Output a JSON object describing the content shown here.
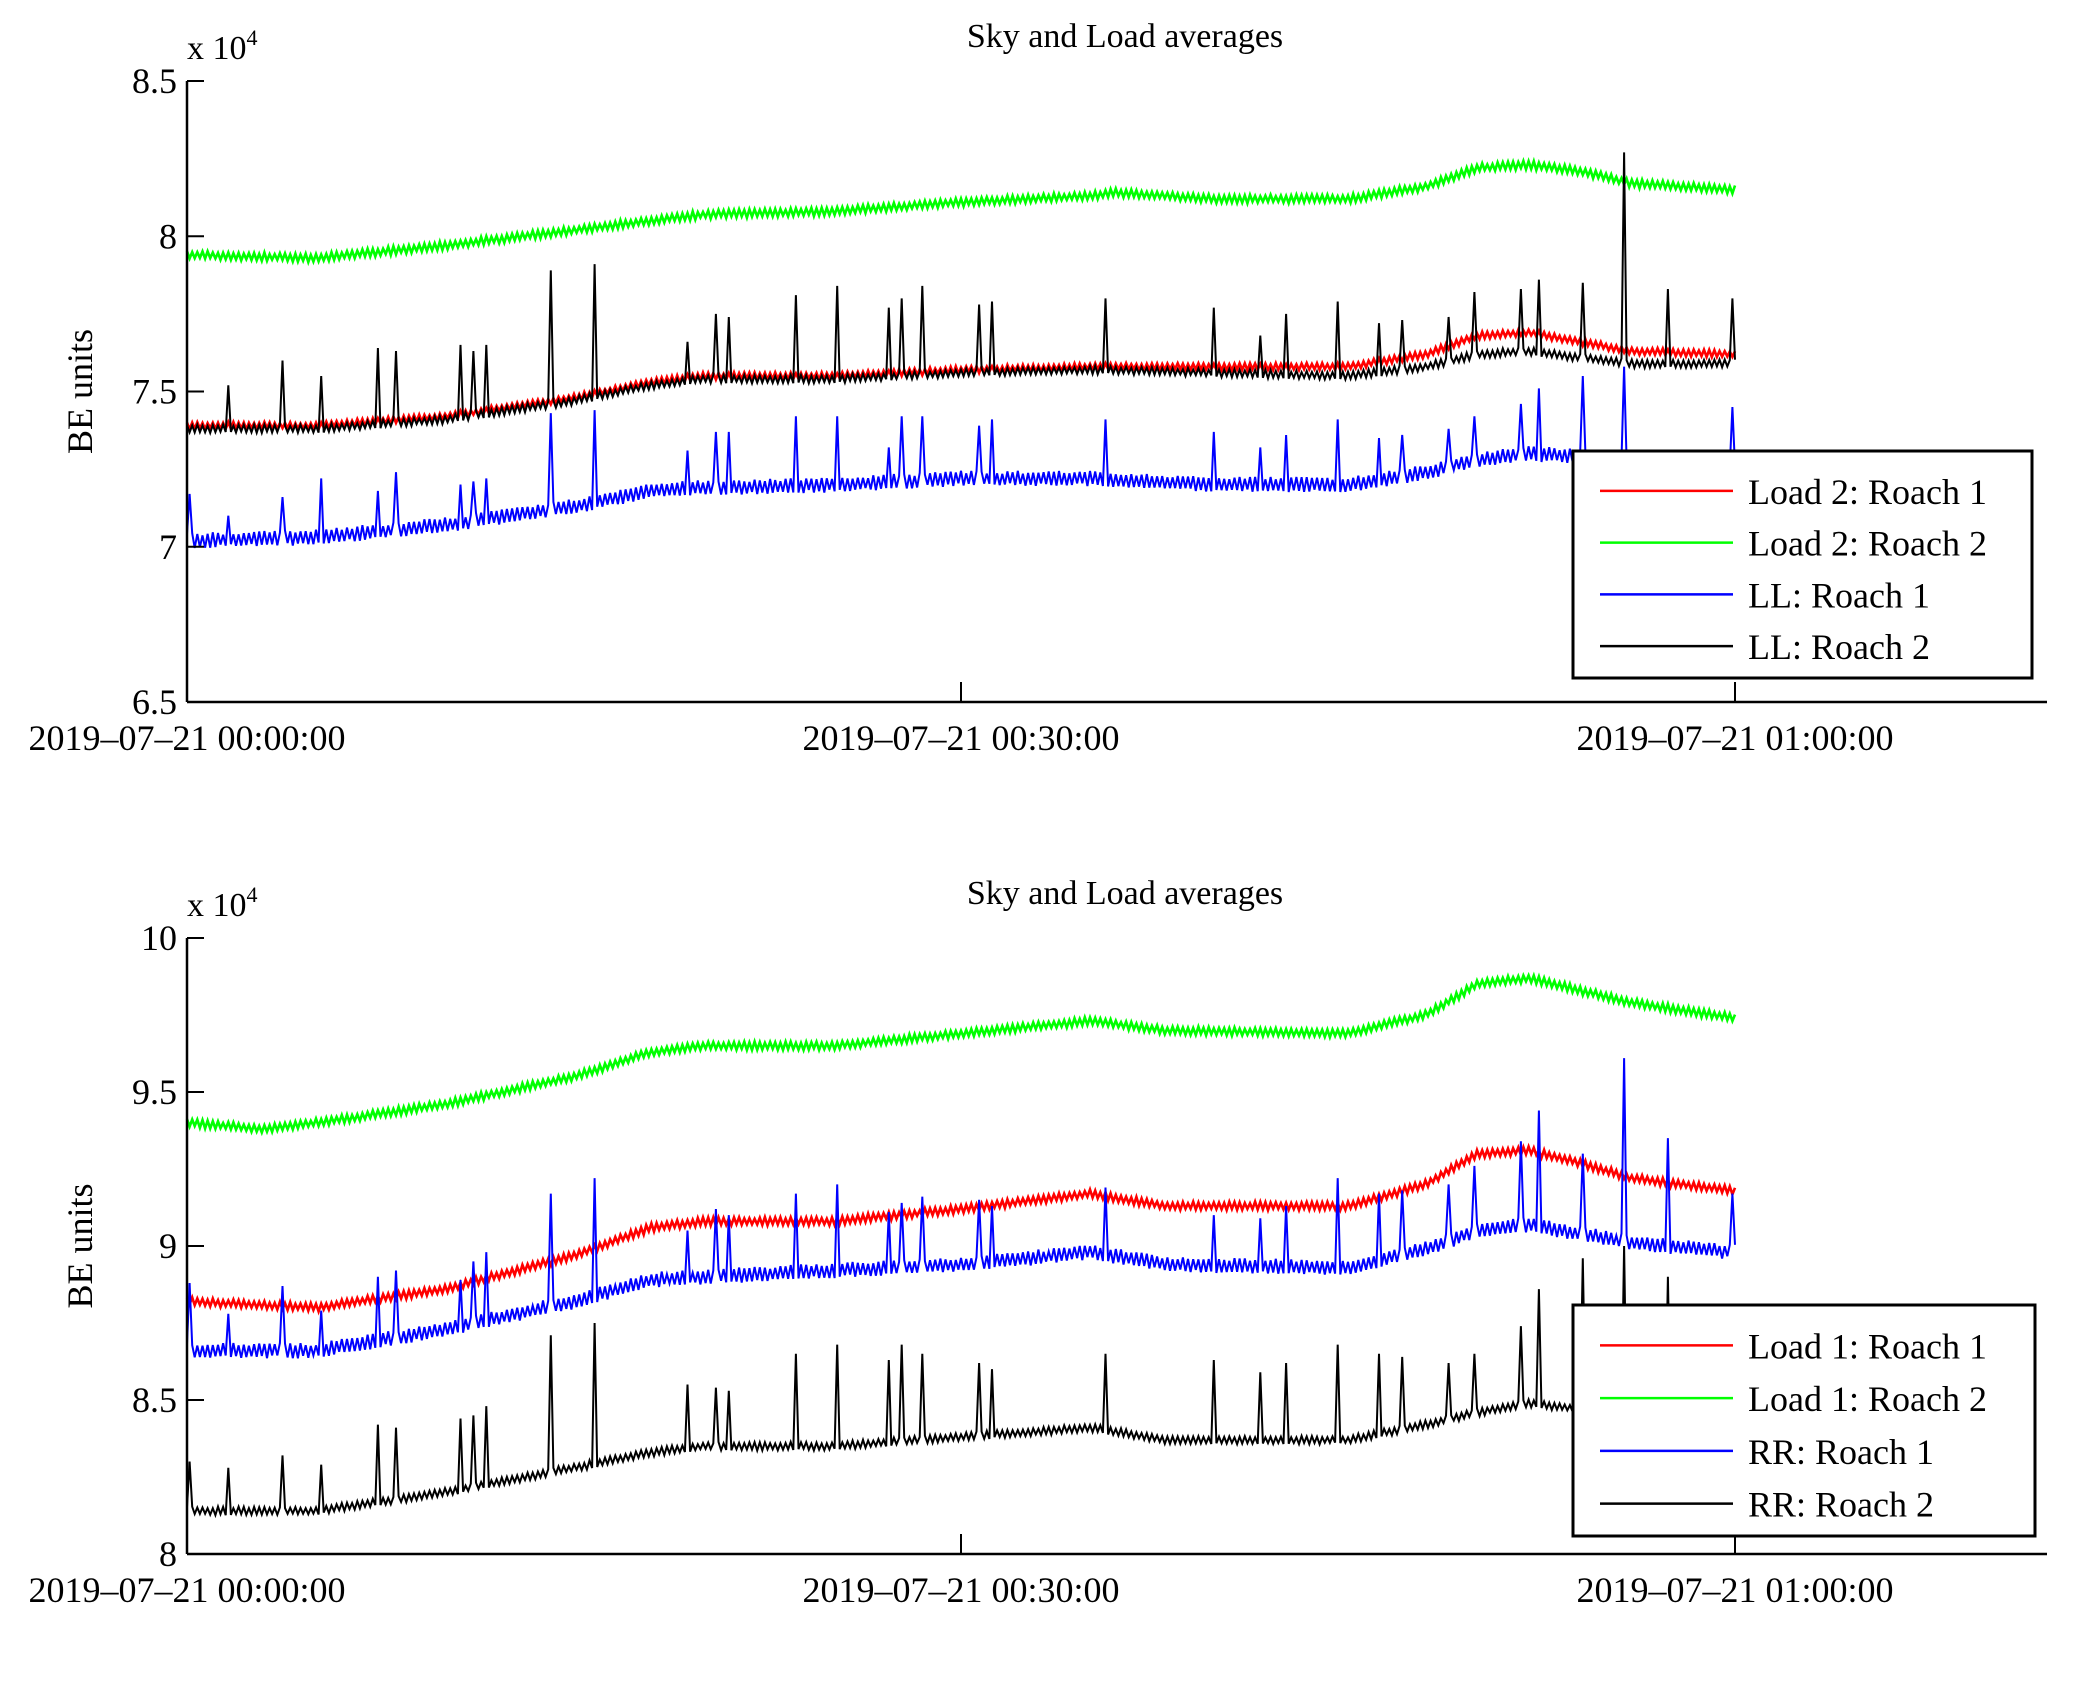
{
  "figure": {
    "background": "#ffffff"
  },
  "chart_data": [
    {
      "type": "line",
      "title": "Sky and Load averages",
      "xlabel": "",
      "ylabel": "BE units",
      "y_multiplier_label": "x 10",
      "y_multiplier_exponent": "4",
      "x_unit": "minutes after 2019-07-21 00:00:00",
      "xlim": [
        0,
        72
      ],
      "ylim": [
        6.5,
        8.5
      ],
      "y_ticks": [
        {
          "value": 6.5,
          "label": "6.5"
        },
        {
          "value": 7,
          "label": "7"
        },
        {
          "value": 7.5,
          "label": "7.5"
        },
        {
          "value": 8,
          "label": "8"
        },
        {
          "value": 8.5,
          "label": "8.5"
        }
      ],
      "x_ticks": [
        {
          "value": 0,
          "label": "2019–07–21 00:00:00"
        },
        {
          "value": 30,
          "label": "2019–07–21 00:30:00"
        },
        {
          "value": 60,
          "label": "2019–07–21 01:00:00"
        }
      ],
      "grid": false,
      "legend_position": "bottom-right",
      "series": [
        {
          "name": "Load 2: Roach 1",
          "color": "#ff0000",
          "x": [
            0,
            5,
            10,
            15,
            18,
            20,
            25,
            30,
            35,
            40,
            45,
            48,
            50,
            52,
            54,
            56,
            60
          ],
          "y": [
            7.39,
            7.39,
            7.42,
            7.48,
            7.53,
            7.55,
            7.55,
            7.57,
            7.58,
            7.58,
            7.58,
            7.62,
            7.68,
            7.69,
            7.66,
            7.63,
            7.62
          ],
          "noise": 0.012,
          "spikes": []
        },
        {
          "name": "Load 2: Roach 2",
          "color": "#00ff00",
          "x": [
            0,
            5,
            10,
            15,
            18,
            20,
            25,
            30,
            35,
            36,
            40,
            45,
            48,
            50,
            52,
            54,
            56,
            60
          ],
          "y": [
            7.94,
            7.93,
            7.97,
            8.02,
            8.05,
            8.07,
            8.08,
            8.11,
            8.13,
            8.14,
            8.12,
            8.12,
            8.16,
            8.22,
            8.23,
            8.21,
            8.17,
            8.15
          ],
          "noise": 0.014,
          "spikes": []
        },
        {
          "name": "LL: Roach 1",
          "color": "#0000ff",
          "x": [
            0,
            5,
            10,
            15,
            18,
            20,
            25,
            30,
            35,
            40,
            45,
            48,
            50,
            52,
            54,
            56,
            60
          ],
          "y": [
            7.02,
            7.03,
            7.07,
            7.13,
            7.18,
            7.19,
            7.2,
            7.22,
            7.22,
            7.2,
            7.2,
            7.24,
            7.28,
            7.3,
            7.29,
            7.25,
            7.24
          ],
          "noise": 0.025,
          "spikes": [
            [
              0.1,
              7.17
            ],
            [
              1.6,
              7.1
            ],
            [
              3.7,
              7.16
            ],
            [
              5.2,
              7.22
            ],
            [
              7.4,
              7.18
            ],
            [
              8.1,
              7.24
            ],
            [
              10.6,
              7.2
            ],
            [
              11.1,
              7.21
            ],
            [
              11.6,
              7.22
            ],
            [
              14.1,
              7.43
            ],
            [
              15.8,
              7.44
            ],
            [
              19.4,
              7.31
            ],
            [
              20.5,
              7.37
            ],
            [
              21.0,
              7.37
            ],
            [
              23.6,
              7.42
            ],
            [
              25.2,
              7.42
            ],
            [
              27.2,
              7.32
            ],
            [
              27.7,
              7.42
            ],
            [
              28.5,
              7.42
            ],
            [
              30.7,
              7.39
            ],
            [
              31.2,
              7.41
            ],
            [
              35.6,
              7.41
            ],
            [
              39.8,
              7.37
            ],
            [
              41.6,
              7.32
            ],
            [
              42.6,
              7.36
            ],
            [
              44.6,
              7.41
            ],
            [
              46.2,
              7.35
            ],
            [
              47.1,
              7.36
            ],
            [
              48.9,
              7.38
            ],
            [
              49.9,
              7.42
            ],
            [
              51.7,
              7.46
            ],
            [
              52.4,
              7.51
            ],
            [
              54.1,
              7.55
            ],
            [
              55.7,
              7.58
            ],
            [
              59.9,
              7.45
            ]
          ]
        },
        {
          "name": "LL: Roach 2",
          "color": "#000000",
          "x": [
            0,
            5,
            10,
            15,
            18,
            20,
            25,
            30,
            35,
            40,
            45,
            48,
            50,
            52,
            54,
            56,
            60
          ],
          "y": [
            7.38,
            7.38,
            7.41,
            7.47,
            7.52,
            7.54,
            7.54,
            7.56,
            7.57,
            7.56,
            7.55,
            7.58,
            7.62,
            7.63,
            7.61,
            7.59,
            7.59
          ],
          "noise": 0.014,
          "spikes": [
            [
              1.6,
              7.52
            ],
            [
              3.7,
              7.6
            ],
            [
              5.2,
              7.55
            ],
            [
              7.4,
              7.64
            ],
            [
              8.1,
              7.63
            ],
            [
              10.6,
              7.65
            ],
            [
              11.1,
              7.63
            ],
            [
              11.6,
              7.65
            ],
            [
              14.1,
              7.89
            ],
            [
              15.8,
              7.91
            ],
            [
              19.4,
              7.66
            ],
            [
              20.5,
              7.75
            ],
            [
              21.0,
              7.74
            ],
            [
              23.6,
              7.81
            ],
            [
              25.2,
              7.84
            ],
            [
              27.2,
              7.77
            ],
            [
              27.7,
              7.8
            ],
            [
              28.5,
              7.84
            ],
            [
              30.7,
              7.78
            ],
            [
              31.2,
              7.79
            ],
            [
              35.6,
              7.8
            ],
            [
              39.8,
              7.77
            ],
            [
              41.6,
              7.68
            ],
            [
              42.6,
              7.75
            ],
            [
              44.6,
              7.79
            ],
            [
              46.2,
              7.72
            ],
            [
              47.1,
              7.73
            ],
            [
              48.9,
              7.74
            ],
            [
              49.9,
              7.82
            ],
            [
              51.7,
              7.83
            ],
            [
              52.4,
              7.86
            ],
            [
              54.1,
              7.85
            ],
            [
              55.7,
              8.27
            ],
            [
              57.4,
              7.83
            ],
            [
              59.9,
              7.8
            ]
          ]
        }
      ]
    },
    {
      "type": "line",
      "title": "Sky and Load averages",
      "xlabel": "",
      "ylabel": "BE units",
      "y_multiplier_label": "x 10",
      "y_multiplier_exponent": "4",
      "x_unit": "minutes after 2019-07-21 00:00:00",
      "xlim": [
        0,
        72
      ],
      "ylim": [
        8,
        10
      ],
      "y_ticks": [
        {
          "value": 8,
          "label": "8"
        },
        {
          "value": 8.5,
          "label": "8.5"
        },
        {
          "value": 9,
          "label": "9"
        },
        {
          "value": 9.5,
          "label": "9.5"
        },
        {
          "value": 10,
          "label": "10"
        }
      ],
      "x_ticks": [
        {
          "value": 0,
          "label": "2019–07–21 00:00:00"
        },
        {
          "value": 30,
          "label": "2019–07–21 00:30:00"
        },
        {
          "value": 60,
          "label": "2019–07–21 01:00:00"
        }
      ],
      "grid": false,
      "legend_position": "bottom-right",
      "series": [
        {
          "name": "Load 1: Roach 1",
          "color": "#ff0000",
          "x": [
            0,
            5,
            10,
            15,
            18,
            20,
            25,
            30,
            35,
            38,
            45,
            48,
            50,
            52,
            54,
            56,
            60
          ],
          "y": [
            8.82,
            8.8,
            8.86,
            8.97,
            9.06,
            9.08,
            9.08,
            9.12,
            9.17,
            9.13,
            9.13,
            9.2,
            9.3,
            9.31,
            9.27,
            9.22,
            9.18
          ],
          "noise": 0.014,
          "spikes": []
        },
        {
          "name": "Load 1: Roach 2",
          "color": "#00ff00",
          "x": [
            0,
            3,
            5,
            10,
            15,
            18,
            20,
            25,
            30,
            35,
            38,
            45,
            48,
            50,
            52,
            54,
            56,
            60
          ],
          "y": [
            9.4,
            9.38,
            9.4,
            9.46,
            9.55,
            9.63,
            9.65,
            9.65,
            9.69,
            9.73,
            9.7,
            9.69,
            9.75,
            9.85,
            9.87,
            9.83,
            9.79,
            9.74
          ],
          "noise": 0.014,
          "spikes": []
        },
        {
          "name": "RR: Roach 1",
          "color": "#0000ff",
          "x": [
            0,
            5,
            10,
            15,
            18,
            20,
            25,
            30,
            35,
            38,
            45,
            48,
            50,
            52,
            54,
            56,
            60
          ],
          "y": [
            8.66,
            8.66,
            8.73,
            8.82,
            8.89,
            8.9,
            8.92,
            8.94,
            8.98,
            8.94,
            8.93,
            8.99,
            9.05,
            9.07,
            9.04,
            9.01,
            8.98
          ],
          "noise": 0.025,
          "spikes": [
            [
              0.1,
              8.88
            ],
            [
              1.6,
              8.78
            ],
            [
              3.7,
              8.87
            ],
            [
              5.2,
              8.79
            ],
            [
              7.4,
              8.9
            ],
            [
              8.1,
              8.92
            ],
            [
              10.6,
              8.89
            ],
            [
              11.1,
              8.95
            ],
            [
              11.6,
              8.98
            ],
            [
              14.1,
              9.17
            ],
            [
              15.8,
              9.22
            ],
            [
              19.4,
              9.05
            ],
            [
              20.5,
              9.12
            ],
            [
              21.0,
              9.1
            ],
            [
              23.6,
              9.17
            ],
            [
              25.2,
              9.2
            ],
            [
              27.2,
              9.11
            ],
            [
              27.7,
              9.14
            ],
            [
              28.5,
              9.16
            ],
            [
              30.7,
              9.15
            ],
            [
              31.2,
              9.13
            ],
            [
              35.6,
              9.19
            ],
            [
              39.8,
              9.1
            ],
            [
              41.6,
              9.09
            ],
            [
              42.6,
              9.13
            ],
            [
              44.6,
              9.22
            ],
            [
              46.2,
              9.17
            ],
            [
              47.1,
              9.18
            ],
            [
              48.9,
              9.2
            ],
            [
              49.9,
              9.26
            ],
            [
              51.7,
              9.34
            ],
            [
              52.4,
              9.44
            ],
            [
              54.1,
              9.3
            ],
            [
              55.7,
              9.61
            ],
            [
              57.4,
              9.35
            ],
            [
              59.9,
              9.17
            ]
          ]
        },
        {
          "name": "RR: Roach 2",
          "color": "#000000",
          "x": [
            0,
            5,
            10,
            15,
            18,
            20,
            25,
            30,
            35,
            38,
            45,
            48,
            50,
            52,
            54,
            56,
            60
          ],
          "y": [
            8.14,
            8.14,
            8.2,
            8.28,
            8.33,
            8.35,
            8.35,
            8.38,
            8.41,
            8.37,
            8.37,
            8.42,
            8.46,
            8.49,
            8.47,
            8.44,
            8.43
          ],
          "noise": 0.014,
          "spikes": [
            [
              0.1,
              8.3
            ],
            [
              1.6,
              8.28
            ],
            [
              3.7,
              8.32
            ],
            [
              5.2,
              8.29
            ],
            [
              7.4,
              8.42
            ],
            [
              8.1,
              8.41
            ],
            [
              10.6,
              8.44
            ],
            [
              11.1,
              8.45
            ],
            [
              11.6,
              8.48
            ],
            [
              14.1,
              8.71
            ],
            [
              15.8,
              8.75
            ],
            [
              19.4,
              8.55
            ],
            [
              20.5,
              8.54
            ],
            [
              21.0,
              8.53
            ],
            [
              23.6,
              8.65
            ],
            [
              25.2,
              8.68
            ],
            [
              27.2,
              8.63
            ],
            [
              27.7,
              8.68
            ],
            [
              28.5,
              8.65
            ],
            [
              30.7,
              8.62
            ],
            [
              31.2,
              8.6
            ],
            [
              35.6,
              8.65
            ],
            [
              39.8,
              8.63
            ],
            [
              41.6,
              8.59
            ],
            [
              42.6,
              8.62
            ],
            [
              44.6,
              8.68
            ],
            [
              46.2,
              8.65
            ],
            [
              47.1,
              8.64
            ],
            [
              48.9,
              8.62
            ],
            [
              49.9,
              8.65
            ],
            [
              51.7,
              8.74
            ],
            [
              52.4,
              8.86
            ],
            [
              54.1,
              8.96
            ],
            [
              55.7,
              9.0
            ],
            [
              57.4,
              8.9
            ],
            [
              59.9,
              8.6
            ]
          ]
        }
      ]
    }
  ]
}
